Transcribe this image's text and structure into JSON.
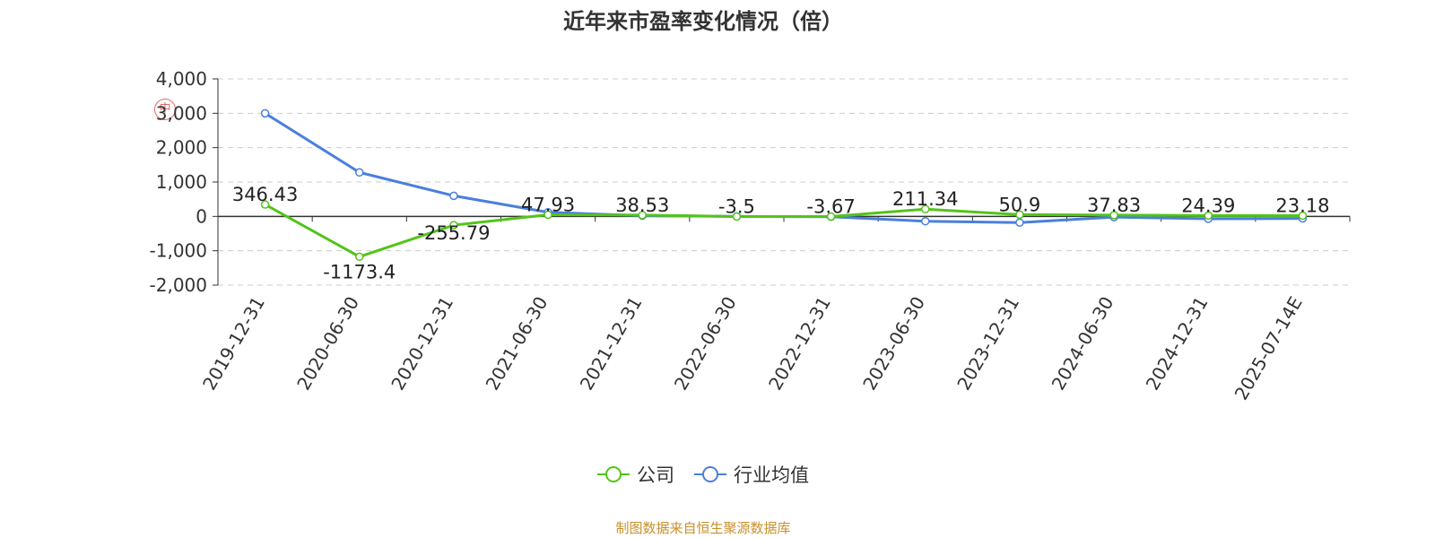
{
  "title": "近年来市盈率变化情况（倍）",
  "source": "制图数据来自恒生聚源数据库",
  "watermark_text": "中",
  "colors": {
    "company": "#52c41a",
    "industry": "#4a7fdc",
    "axis": "#333333",
    "grid": "#cccccc",
    "source": "#c8902a"
  },
  "chart_data": {
    "type": "line",
    "categories": [
      "2019-12-31",
      "2020-06-30",
      "2020-12-31",
      "2021-06-30",
      "2021-12-31",
      "2022-06-30",
      "2022-12-31",
      "2023-06-30",
      "2023-12-31",
      "2024-06-30",
      "2024-12-31",
      "2025-07-14E"
    ],
    "series": [
      {
        "name": "公司",
        "color": "#52c41a",
        "values": [
          346.43,
          -1173.4,
          -255.79,
          47.93,
          38.53,
          -3.5,
          -3.67,
          211.34,
          50.9,
          37.83,
          24.39,
          23.18
        ],
        "data_labels": [
          "346.43",
          "-1173.4",
          "-255.79",
          "47.93",
          "38.53",
          "-3.5",
          "-3.67",
          "211.34",
          "50.9",
          "37.83",
          "24.39",
          "23.18"
        ]
      },
      {
        "name": "行业均值",
        "color": "#4a7fdc",
        "values": [
          3000,
          1280,
          600,
          120,
          20,
          0,
          -10,
          -140,
          -180,
          -20,
          -70,
          -60
        ]
      }
    ],
    "yticks": [
      4000,
      3000,
      2000,
      1000,
      0,
      -1000,
      -2000
    ],
    "ytick_labels": [
      "4,000",
      "3,000",
      "2,000",
      "1,000",
      "0",
      "-1,000",
      "-2,000"
    ],
    "ylim": [
      -2000,
      4000
    ],
    "grid": true,
    "legend_position": "bottom"
  }
}
